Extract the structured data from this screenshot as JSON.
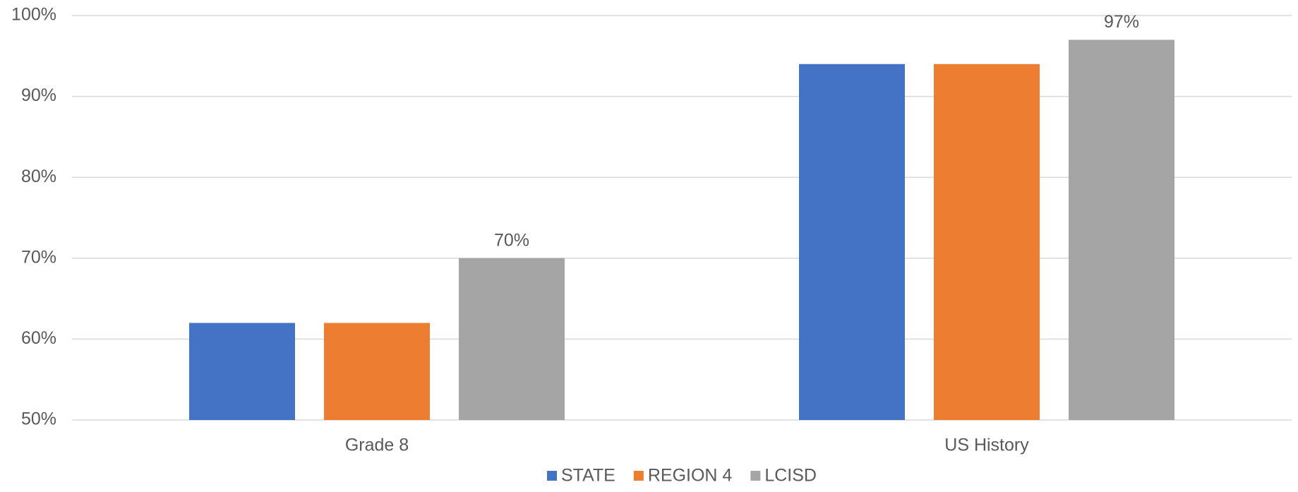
{
  "chart_data": {
    "type": "bar",
    "categories": [
      "Grade 8",
      "US History"
    ],
    "series": [
      {
        "name": "STATE",
        "color": "#4472c4",
        "values": [
          62,
          94
        ]
      },
      {
        "name": "REGION 4",
        "color": "#ed7d31",
        "values": [
          62,
          94
        ]
      },
      {
        "name": "LCISD",
        "color": "#a5a5a5",
        "values": [
          70,
          97
        ],
        "value_labels": [
          "70%",
          "97%"
        ]
      }
    ],
    "ylim": [
      50,
      100
    ],
    "yticks": [
      {
        "value": 50,
        "label": "50%"
      },
      {
        "value": 60,
        "label": "60%"
      },
      {
        "value": 70,
        "label": "70%"
      },
      {
        "value": 80,
        "label": "80%"
      },
      {
        "value": 90,
        "label": "90%"
      },
      {
        "value": 100,
        "label": "100%"
      }
    ],
    "grid": true,
    "legend": "bottom"
  }
}
